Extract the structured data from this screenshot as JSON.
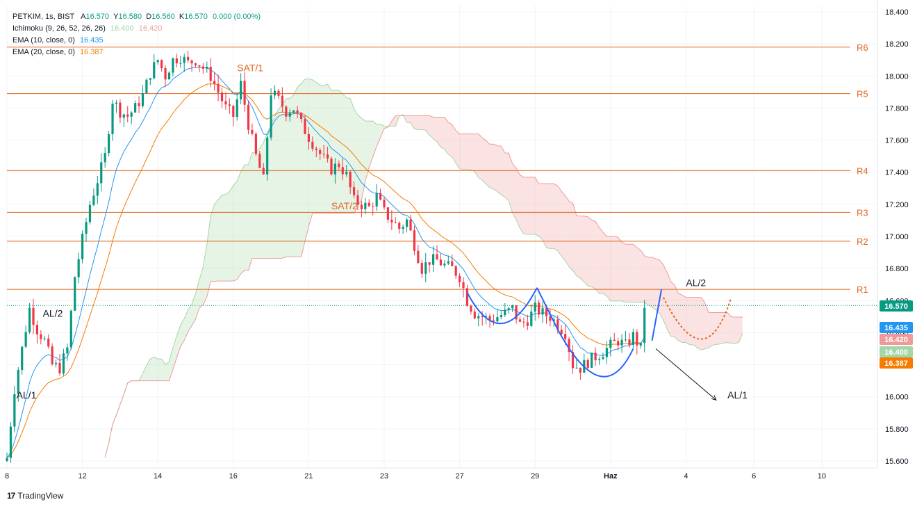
{
  "header": {
    "symbol": "PETKIM, 1s, BIST",
    "ohlc": [
      {
        "k": "A",
        "v": "16.570"
      },
      {
        "k": "Y",
        "v": "16.580"
      },
      {
        "k": "D",
        "v": "16.560"
      },
      {
        "k": "K",
        "v": "16.570"
      }
    ],
    "change": "0.000 (0.00%)"
  },
  "indicators": [
    {
      "label": "Ichimoku (9, 26, 52, 26, 26)",
      "values": [
        {
          "v": "16.400",
          "color": "#a5d6a7"
        },
        {
          "v": "16.420",
          "color": "#ef9a9a"
        }
      ]
    },
    {
      "label": "EMA (10, close, 0)",
      "values": [
        {
          "v": "16.435",
          "color": "#2196f3"
        }
      ]
    },
    {
      "label": "EMA (20, close, 0)",
      "values": [
        {
          "v": "16.387",
          "color": "#f57c00"
        }
      ]
    }
  ],
  "brand": "TradingView",
  "colors": {
    "up": "#089981",
    "down": "#f23645",
    "ema10": "#2196f3",
    "ema20": "#f57c00",
    "resistance": "#e0651b",
    "cloud_green": "#a5d6a7",
    "cloud_red": "#ef9a9a",
    "pattern": "#2962ff"
  },
  "chart_data": {
    "type": "candlestick",
    "y_axis": {
      "min": 15.6,
      "max": 18.4,
      "ticks": [
        15.6,
        15.8,
        16.0,
        16.2,
        16.4,
        16.6,
        16.8,
        17.0,
        17.2,
        17.4,
        17.6,
        17.8,
        18.0,
        18.2,
        18.4
      ],
      "tick_labels": [
        "15.600",
        "15.800",
        "16.000",
        "16.200",
        "16.400",
        "16.600",
        "16.800",
        "17.000",
        "17.200",
        "17.400",
        "17.600",
        "17.800",
        "18.000",
        "18.200",
        "18.400"
      ]
    },
    "x_axis": {
      "labels": [
        {
          "label": "8",
          "bar": 0
        },
        {
          "label": "12",
          "bar": 20
        },
        {
          "label": "14",
          "bar": 40
        },
        {
          "label": "16",
          "bar": 60
        },
        {
          "label": "21",
          "bar": 80
        },
        {
          "label": "23",
          "bar": 100
        },
        {
          "label": "27",
          "bar": 120
        },
        {
          "label": "29",
          "bar": 140
        },
        {
          "label": "Haz",
          "bar": 160
        },
        {
          "label": "4",
          "bar": 180
        },
        {
          "label": "6",
          "bar": 198
        },
        {
          "label": "10",
          "bar": 216
        }
      ],
      "bars_visible": 240
    },
    "resistance_levels": [
      {
        "name": "R1",
        "value": 16.67
      },
      {
        "name": "R2",
        "value": 16.97
      },
      {
        "name": "R3",
        "value": 17.15
      },
      {
        "name": "R4",
        "value": 17.41
      },
      {
        "name": "R5",
        "value": 17.89
      },
      {
        "name": "R6",
        "value": 18.18
      }
    ],
    "last_price": {
      "value": 16.57,
      "label": "16.570"
    },
    "price_tags": [
      {
        "label": "16.570",
        "value": 16.57,
        "color": "#089981"
      },
      {
        "label": "16.435",
        "value": 16.435,
        "color": "#2196f3"
      },
      {
        "label": "16.420",
        "value": 16.42,
        "color": "#ef9a9a"
      },
      {
        "label": "16.400",
        "value": 16.4,
        "color": "#a5d6a7"
      },
      {
        "label": "16.387",
        "value": 16.387,
        "color": "#f57c00"
      }
    ],
    "annotations": [
      {
        "text": "AL/1",
        "bar": 2.5,
        "value": 15.99,
        "color": "#131722"
      },
      {
        "text": "AL/2",
        "bar": 9.5,
        "value": 16.5,
        "color": "#131722"
      },
      {
        "text": "SAT/1",
        "bar": 61,
        "value": 18.03,
        "color": "#e0651b"
      },
      {
        "text": "SAT/2",
        "bar": 86,
        "value": 17.17,
        "color": "#e0651b"
      },
      {
        "text": "AL/2",
        "bar": 180,
        "value": 16.69,
        "color": "#131722"
      },
      {
        "text": "AL/1",
        "bar": 191,
        "value": 15.99,
        "color": "#131722"
      }
    ],
    "ohlc_anchors": [
      [
        0,
        15.62
      ],
      [
        2,
        16.05
      ],
      [
        6,
        16.55
      ],
      [
        8,
        16.42
      ],
      [
        10,
        16.35
      ],
      [
        12,
        16.2
      ],
      [
        14,
        16.18
      ],
      [
        16,
        16.3
      ],
      [
        18,
        16.75
      ],
      [
        20,
        16.98
      ],
      [
        22,
        17.2
      ],
      [
        24,
        17.35
      ],
      [
        26,
        17.5
      ],
      [
        28,
        17.85
      ],
      [
        30,
        17.78
      ],
      [
        32,
        17.75
      ],
      [
        34,
        17.8
      ],
      [
        36,
        17.88
      ],
      [
        38,
        18.02
      ],
      [
        40,
        18.1
      ],
      [
        42,
        18.0
      ],
      [
        44,
        18.1
      ],
      [
        46,
        18.12
      ],
      [
        48,
        18.08
      ],
      [
        50,
        18.1
      ],
      [
        52,
        18.05
      ],
      [
        54,
        18.0
      ],
      [
        56,
        17.9
      ],
      [
        58,
        17.8
      ],
      [
        60,
        17.75
      ],
      [
        62,
        17.95
      ],
      [
        64,
        17.7
      ],
      [
        66,
        17.5
      ],
      [
        68,
        17.35
      ],
      [
        70,
        17.9
      ],
      [
        72,
        17.85
      ],
      [
        74,
        17.78
      ],
      [
        76,
        17.8
      ],
      [
        78,
        17.7
      ],
      [
        80,
        17.62
      ],
      [
        82,
        17.55
      ],
      [
        84,
        17.48
      ],
      [
        86,
        17.42
      ],
      [
        88,
        17.45
      ],
      [
        90,
        17.38
      ],
      [
        92,
        17.22
      ],
      [
        94,
        17.2
      ],
      [
        96,
        17.18
      ],
      [
        98,
        17.25
      ],
      [
        100,
        17.15
      ],
      [
        102,
        17.1
      ],
      [
        104,
        17.05
      ],
      [
        106,
        17.1
      ],
      [
        108,
        16.95
      ],
      [
        110,
        16.8
      ],
      [
        112,
        16.85
      ],
      [
        114,
        16.85
      ],
      [
        116,
        16.82
      ],
      [
        118,
        16.8
      ],
      [
        120,
        16.75
      ],
      [
        122,
        16.6
      ],
      [
        124,
        16.52
      ],
      [
        126,
        16.5
      ],
      [
        128,
        16.48
      ],
      [
        130,
        16.5
      ],
      [
        132,
        16.52
      ],
      [
        134,
        16.55
      ],
      [
        136,
        16.45
      ],
      [
        138,
        16.48
      ],
      [
        140,
        16.55
      ],
      [
        142,
        16.52
      ],
      [
        144,
        16.5
      ],
      [
        146,
        16.45
      ],
      [
        148,
        16.4
      ],
      [
        150,
        16.2
      ],
      [
        152,
        16.18
      ],
      [
        154,
        16.22
      ],
      [
        156,
        16.25
      ],
      [
        158,
        16.28
      ],
      [
        160,
        16.32
      ],
      [
        162,
        16.35
      ],
      [
        164,
        16.32
      ],
      [
        166,
        16.38
      ],
      [
        168,
        16.3
      ],
      [
        169,
        16.57
      ]
    ],
    "overlays": {
      "ichimoku_cloud": {
        "senkou_a_color": "#a5d6a7",
        "senkou_b_color": "#ef9a9a"
      },
      "pattern": {
        "type": "cup-and-handle",
        "projection": "dotted"
      }
    }
  }
}
